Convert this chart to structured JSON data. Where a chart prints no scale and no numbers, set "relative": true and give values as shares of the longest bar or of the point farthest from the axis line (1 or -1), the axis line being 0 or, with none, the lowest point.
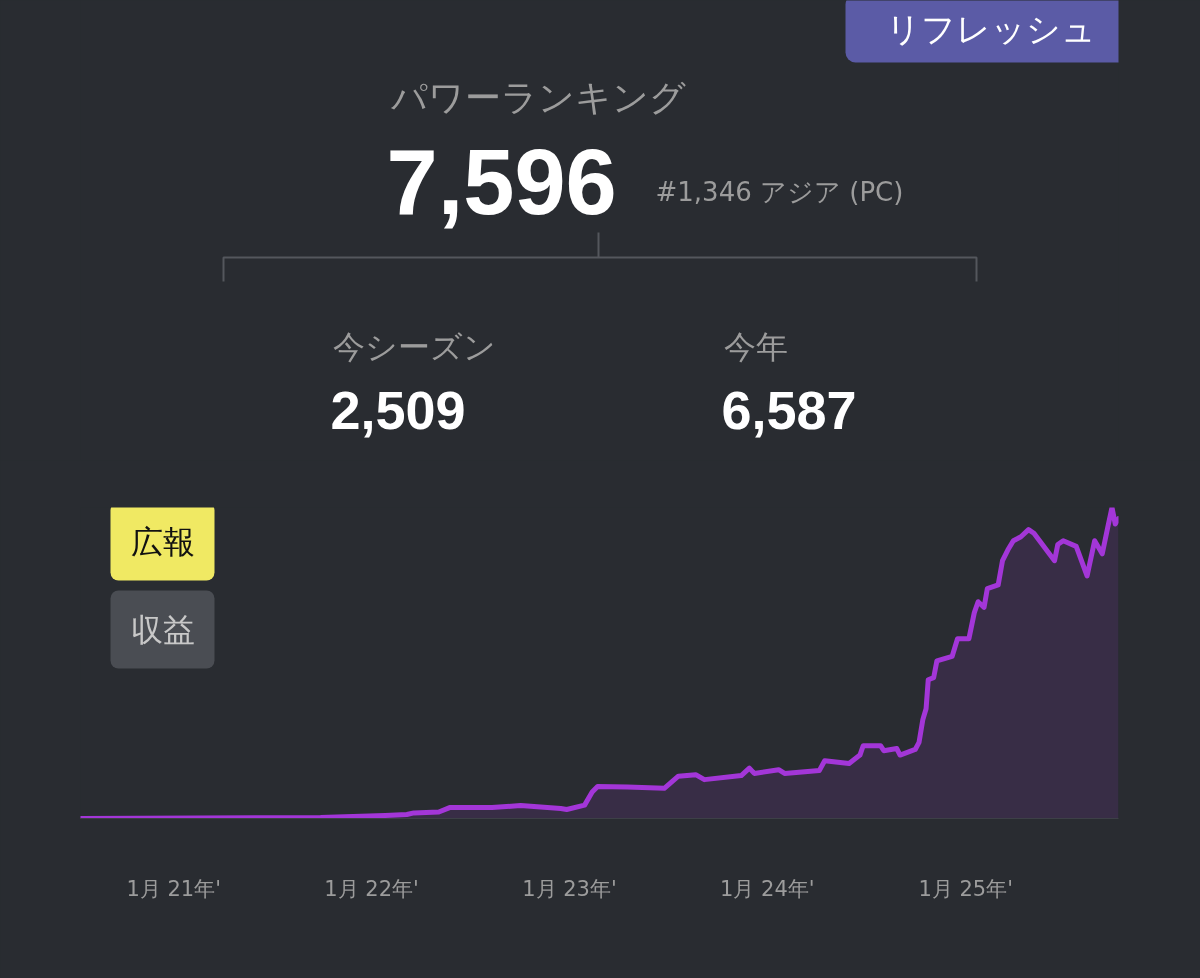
{
  "chart_data": [
    {
      "type": "other",
      "title": "パワーランキング",
      "subtitle": "#1,346 アジア (PC)",
      "annotations": [
        "7,596",
        "今シーズン",
        "2,509",
        "今年",
        "6,587",
        "リフレッシュ"
      ]
    },
    {
      "type": "area",
      "color": "#a336d8",
      "relative": true,
      "x": [
        "2020-07-13",
        "2021-09-29",
        "2022-01-26",
        "2022-03-07",
        "2022-03-20",
        "2022-05-05",
        "2022-05-25",
        "2022-08-11",
        "2022-10-03",
        "2022-12-16",
        "2022-12-27",
        "2023-01-29",
        "2023-02-12",
        "2023-02-22",
        "2023-04-18",
        "2023-06-25",
        "2023-07-21",
        "2023-08-22",
        "2023-09-07",
        "2023-11-14",
        "2023-11-29",
        "2023-12-08",
        "2024-01-22",
        "2024-02-02",
        "2024-04-06",
        "2024-04-16",
        "2024-05-31",
        "2024-06-20",
        "2024-06-26",
        "2024-07-28",
        "2024-08-03",
        "2024-08-27",
        "2024-09-02",
        "2024-09-30",
        "2024-10-07",
        "2024-10-14",
        "2024-10-20",
        "2024-10-24",
        "2024-11-03",
        "2024-11-09",
        "2024-12-07",
        "2024-12-17",
        "2025-01-07",
        "2025-01-17",
        "2025-01-24",
        "2025-02-04",
        "2025-02-10",
        "2025-03-02",
        "2025-03-10",
        "2025-03-20",
        "2025-03-30",
        "2025-04-13",
        "2025-04-27",
        "2025-05-07",
        "2025-06-14",
        "2025-06-20",
        "2025-06-30",
        "2025-07-24",
        "2025-08-13",
        "2025-08-27",
        "2025-09-10",
        "2025-09-20",
        "2025-09-28",
        "2025-10-04",
        "2025-10-10"
      ],
      "values": [
        0,
        0.003,
        0.01,
        0.013,
        0.018,
        0.021,
        0.035,
        0.035,
        0.042,
        0.032,
        0.029,
        0.043,
        0.085,
        0.103,
        0.101,
        0.097,
        0.136,
        0.141,
        0.125,
        0.138,
        0.162,
        0.145,
        0.157,
        0.145,
        0.154,
        0.186,
        0.177,
        0.204,
        0.234,
        0.234,
        0.218,
        0.225,
        0.204,
        0.222,
        0.245,
        0.318,
        0.353,
        0.446,
        0.453,
        0.507,
        0.521,
        0.578,
        0.578,
        0.662,
        0.697,
        0.679,
        0.739,
        0.751,
        0.829,
        0.864,
        0.893,
        0.906,
        0.929,
        0.917,
        0.829,
        0.881,
        0.893,
        0.875,
        0.78,
        0.893,
        0.851,
        0.935,
        1,
        0.947,
        0.964
      ],
      "xlim": [
        "2020-07-13",
        "2025-10-10"
      ],
      "xticks": [
        {
          "value": "2021-01-01",
          "label": "1月 21年'"
        },
        {
          "value": "2022-01-01",
          "label": "1月 22年'"
        },
        {
          "value": "2023-01-01",
          "label": "1月 23年'"
        },
        {
          "value": "2024-01-01",
          "label": "1月 24年'"
        },
        {
          "value": "2025-01-01",
          "label": "1月 25年'"
        }
      ],
      "grid": false,
      "annotations": [
        "広報",
        "収益"
      ]
    }
  ]
}
